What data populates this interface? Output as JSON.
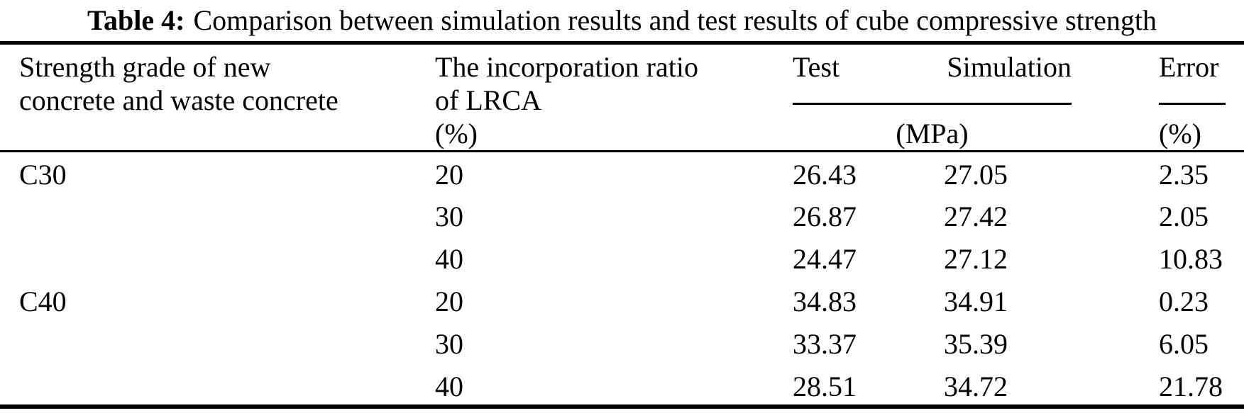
{
  "title": {
    "label": "Table 4:",
    "text": "Comparison between simulation results and test results of cube compressive strength"
  },
  "header": {
    "grade_lines": [
      "Strength grade of new",
      "concrete and waste concrete"
    ],
    "ratio_lines": [
      "The incorporation ratio",
      "of LRCA",
      "(%)"
    ],
    "test_label": "Test",
    "simulation_label": "Simulation",
    "mpa_unit": "(MPa)",
    "error_label": "Error",
    "error_unit": "(%)"
  },
  "rows": [
    {
      "grade": "C30",
      "ratio": "20",
      "test": "26.43",
      "simulation": "27.05",
      "error": "2.35"
    },
    {
      "grade": "",
      "ratio": "30",
      "test": "26.87",
      "simulation": "27.42",
      "error": "2.05"
    },
    {
      "grade": "",
      "ratio": "40",
      "test": "24.47",
      "simulation": "27.12",
      "error": "10.83"
    },
    {
      "grade": "C40",
      "ratio": "20",
      "test": "34.83",
      "simulation": "34.91",
      "error": "0.23"
    },
    {
      "grade": "",
      "ratio": "30",
      "test": "33.37",
      "simulation": "35.39",
      "error": "6.05"
    },
    {
      "grade": "",
      "ratio": "40",
      "test": "28.51",
      "simulation": "34.72",
      "error": "21.78"
    }
  ]
}
